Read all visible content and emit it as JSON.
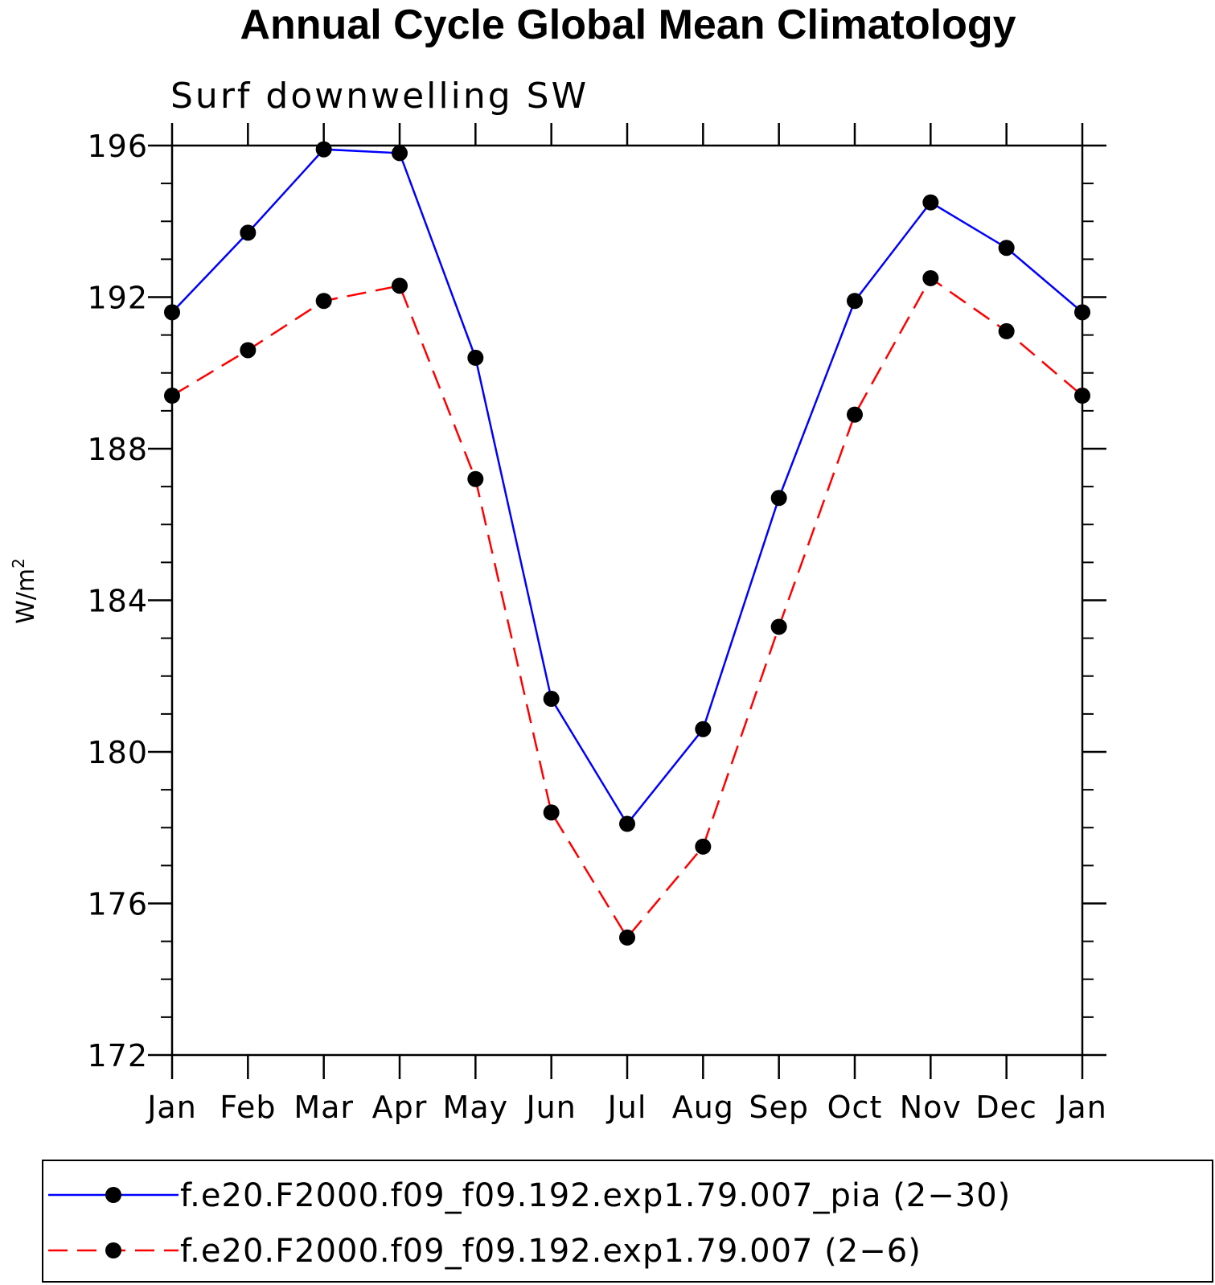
{
  "chart_data": {
    "type": "line",
    "title": "Annual Cycle Global Mean Climatology",
    "subtitle": "Surf downwelling SW",
    "ylabel": "W/m",
    "ylabel_superscript": "2",
    "xlabel": "",
    "categories": [
      "Jan",
      "Feb",
      "Mar",
      "Apr",
      "May",
      "Jun",
      "Jul",
      "Aug",
      "Sep",
      "Oct",
      "Nov",
      "Dec",
      "Jan"
    ],
    "ylim": [
      172,
      196
    ],
    "yticks": [
      172,
      176,
      180,
      184,
      188,
      192,
      196
    ],
    "yminor_step": 1,
    "series": [
      {
        "name": "f.e20.F2000.f09_f09.192.exp1.79.007_pia (2−30)",
        "color": "#0000ff",
        "dash": "solid",
        "marker": "filled-circle",
        "values": [
          191.6,
          193.7,
          195.9,
          195.8,
          190.4,
          181.4,
          178.1,
          180.6,
          186.7,
          191.9,
          194.5,
          193.3,
          191.6
        ]
      },
      {
        "name": "f.e20.F2000.f09_f09.192.exp1.79.007 (2−6)",
        "color": "#ff0000",
        "dash": "dashed",
        "marker": "filled-circle",
        "values": [
          189.4,
          190.6,
          191.9,
          192.3,
          187.2,
          178.4,
          175.1,
          177.5,
          183.3,
          188.9,
          192.5,
          191.1,
          189.4
        ]
      }
    ],
    "grid": false,
    "legend_position": "bottom"
  }
}
